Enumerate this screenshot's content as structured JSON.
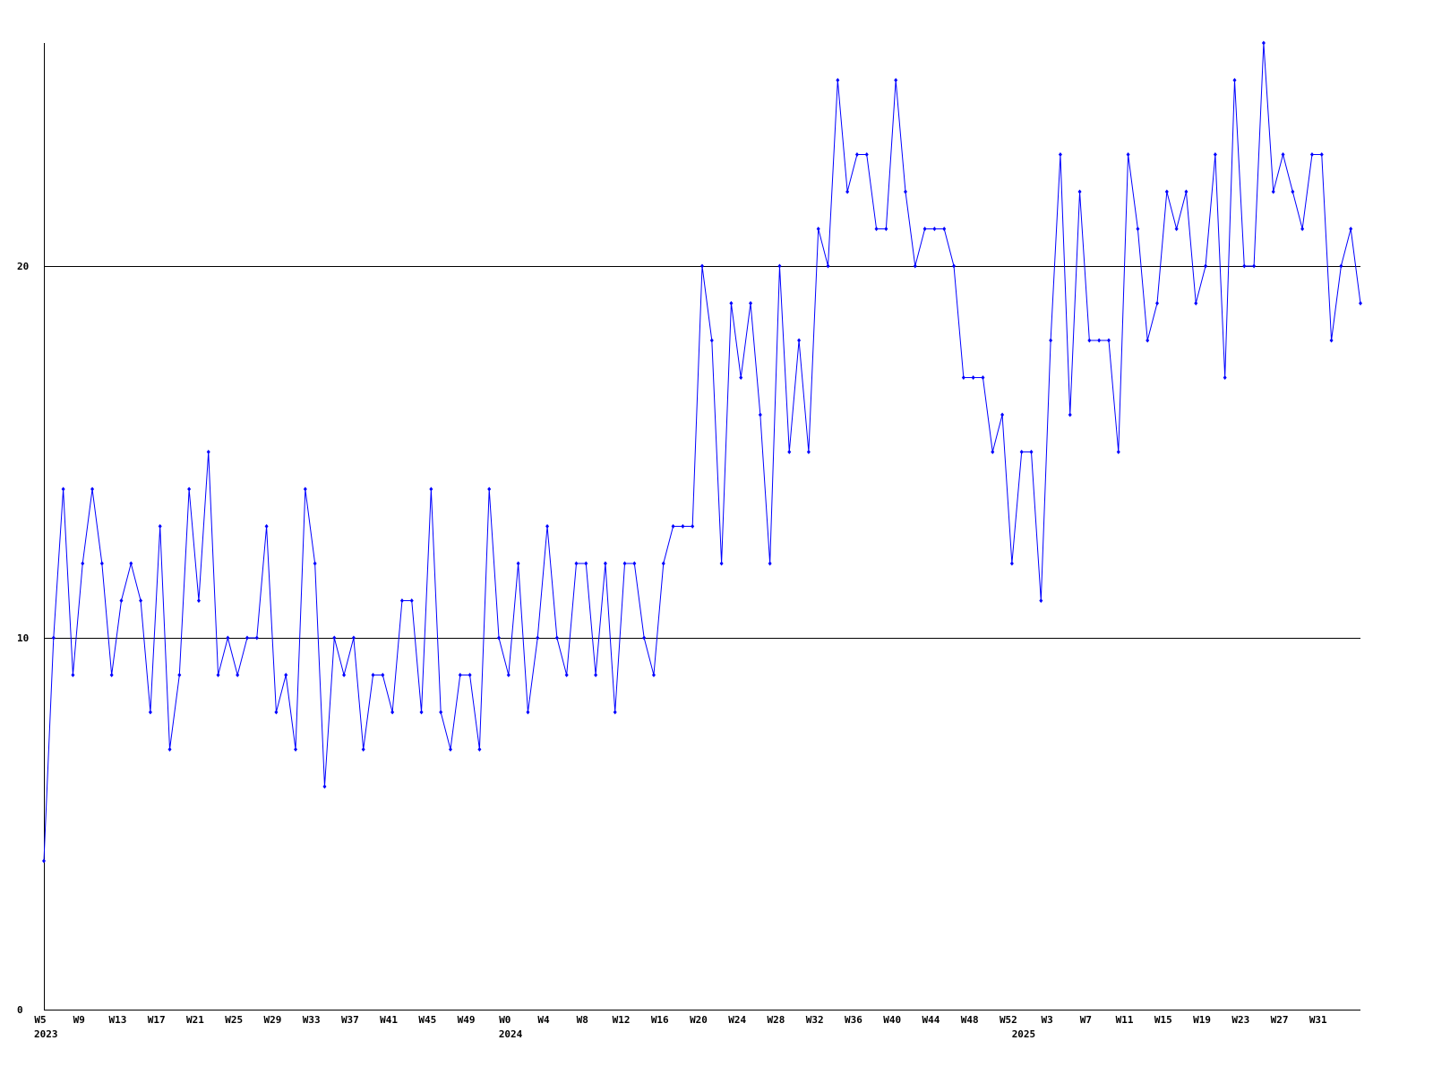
{
  "chart_data": {
    "type": "line",
    "categories": [
      "W5",
      null,
      null,
      null,
      "W9",
      null,
      null,
      null,
      "W13",
      null,
      null,
      null,
      "W17",
      null,
      null,
      null,
      "W21",
      null,
      null,
      null,
      "W25",
      null,
      null,
      null,
      "W29",
      null,
      null,
      null,
      "W33",
      null,
      null,
      null,
      "W37",
      null,
      null,
      null,
      "W41",
      null,
      null,
      null,
      "W45",
      null,
      null,
      null,
      "W49",
      null,
      null,
      null,
      "W0",
      null,
      null,
      null,
      "W4",
      null,
      null,
      null,
      "W8",
      null,
      null,
      null,
      "W12",
      null,
      null,
      null,
      "W16",
      null,
      null,
      null,
      "W20",
      null,
      null,
      null,
      "W24",
      null,
      null,
      null,
      "W28",
      null,
      null,
      null,
      "W32",
      null,
      null,
      null,
      "W36",
      null,
      null,
      null,
      "W40",
      null,
      null,
      null,
      "W44",
      null,
      null,
      null,
      "W48",
      null,
      null,
      null,
      "W52",
      null,
      null,
      null,
      "W3",
      null,
      null,
      null,
      "W7",
      null,
      null,
      null,
      "W11",
      null,
      null,
      null,
      "W15",
      null,
      null,
      null,
      "W19",
      null,
      null,
      null,
      "W23",
      null,
      null,
      null,
      "W27",
      null,
      null,
      null,
      "W31",
      null,
      null,
      null,
      null
    ],
    "category_years": [
      "2023",
      null,
      null,
      null,
      null,
      null,
      null,
      null,
      null,
      null,
      null,
      null,
      null,
      null,
      null,
      null,
      null,
      null,
      null,
      null,
      null,
      null,
      null,
      null,
      null,
      null,
      null,
      null,
      null,
      null,
      null,
      null,
      null,
      null,
      null,
      null,
      null,
      null,
      null,
      null,
      null,
      null,
      null,
      null,
      null,
      null,
      null,
      null,
      "2024",
      null,
      null,
      null,
      null,
      null,
      null,
      null,
      null,
      null,
      null,
      null,
      null,
      null,
      null,
      null,
      null,
      null,
      null,
      null,
      null,
      null,
      null,
      null,
      null,
      null,
      null,
      null,
      null,
      null,
      null,
      null,
      null,
      null,
      null,
      null,
      null,
      null,
      null,
      null,
      null,
      null,
      null,
      null,
      null,
      null,
      null,
      null,
      null,
      null,
      null,
      null,
      null,
      "2025",
      null,
      null,
      null,
      null,
      null,
      null,
      null,
      null,
      null,
      null,
      null,
      null,
      null,
      null,
      null,
      null,
      null,
      null,
      null,
      null,
      null,
      null,
      null,
      null,
      null,
      null,
      null,
      null,
      null,
      null,
      null,
      null,
      null,
      null,
      null
    ],
    "series": [
      {
        "color": "#0000ff",
        "values": [
          4,
          10,
          14,
          9,
          12,
          14,
          12,
          9,
          11,
          12,
          11,
          8,
          13,
          7,
          9,
          14,
          11,
          15,
          9,
          10,
          9,
          10,
          10,
          13,
          8,
          9,
          7,
          14,
          12,
          6,
          10,
          9,
          10,
          7,
          9,
          9,
          8,
          11,
          11,
          8,
          14,
          8,
          7,
          9,
          9,
          7,
          14,
          10,
          9,
          12,
          8,
          10,
          13,
          10,
          9,
          12,
          12,
          9,
          12,
          8,
          12,
          12,
          10,
          9,
          12,
          13,
          13,
          13,
          20,
          18,
          12,
          19,
          17,
          19,
          16,
          12,
          20,
          15,
          18,
          15,
          21,
          20,
          25,
          22,
          23,
          23,
          21,
          21,
          25,
          22,
          20,
          21,
          21,
          21,
          20,
          17,
          17,
          17,
          15,
          16,
          12,
          15,
          15,
          11,
          18,
          23,
          16,
          22,
          18,
          18,
          18,
          15,
          23,
          21,
          18,
          19,
          22,
          21,
          22,
          19,
          20,
          23,
          17,
          25,
          20,
          20,
          26,
          22,
          23,
          22,
          21,
          23,
          23,
          18,
          20,
          21,
          19
        ]
      }
    ],
    "ylim": [
      0,
      26
    ],
    "yticks": [
      0,
      10,
      20
    ],
    "grid": true,
    "grid_color": "#000000"
  }
}
